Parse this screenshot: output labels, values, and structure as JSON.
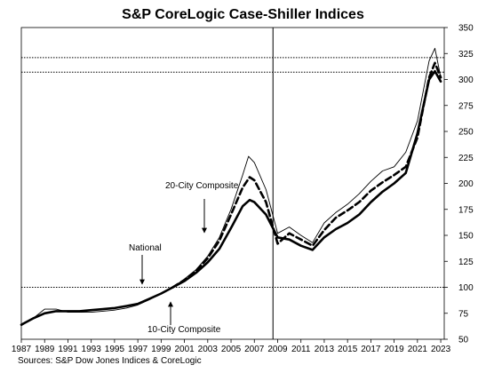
{
  "chart_data": {
    "type": "line",
    "title": "S&P CoreLogic Case-Shiller Indices",
    "source": "Sources:  S&P Dow Jones Indices & CoreLogic",
    "xlabel": "",
    "ylabel": "",
    "xlim": [
      1987,
      2023.3
    ],
    "ylim": [
      50,
      350
    ],
    "x_ticks": [
      "1987",
      "1989",
      "1991",
      "1993",
      "1995",
      "1997",
      "1999",
      "2001",
      "2003",
      "2005",
      "2007",
      "2009",
      "2011",
      "2013",
      "2015",
      "2017",
      "2019",
      "2021",
      "2023"
    ],
    "y_ticks": [
      50,
      75,
      100,
      125,
      150,
      175,
      200,
      225,
      250,
      275,
      300,
      325,
      350
    ],
    "y_axis_side": "right",
    "grid": false,
    "reference_lines": {
      "horizontal": [
        100,
        307,
        321
      ],
      "vertical": [
        2008.6
      ]
    },
    "annotations": [
      {
        "text": "20-City Composite",
        "target_series": "20-City Composite",
        "x": 2002.3,
        "y": 165
      },
      {
        "text": "National",
        "target_series": "National",
        "x": 1997.3,
        "y": 102
      },
      {
        "text": "10-City Composite",
        "target_series": "10-City Composite",
        "x": 1999.5,
        "y": 96
      }
    ],
    "series": [
      {
        "name": "National",
        "style": "solid-thick",
        "color": "#000000",
        "x": [
          1987,
          1988,
          1989,
          1990,
          1991,
          1992,
          1993,
          1994,
          1995,
          1996,
          1997,
          1998,
          1999,
          2000,
          2001,
          2002,
          2003,
          2004,
          2005,
          2006,
          2006.6,
          2007,
          2008,
          2009,
          2010,
          2011,
          2012,
          2013,
          2014,
          2015,
          2016,
          2017,
          2018,
          2019,
          2020,
          2021,
          2022,
          2022.5,
          2023
        ],
        "y": [
          64,
          70,
          75,
          77,
          77,
          77,
          78,
          79,
          80,
          82,
          84,
          89,
          94,
          100,
          106,
          114,
          124,
          137,
          157,
          178,
          184,
          182,
          170,
          148,
          146,
          140,
          136,
          148,
          156,
          162,
          170,
          182,
          192,
          200,
          210,
          248,
          300,
          308,
          298
        ]
      },
      {
        "name": "20-City Composite",
        "style": "solid-thin",
        "color": "#000000",
        "x": [
          2000,
          2001,
          2002,
          2003,
          2004,
          2005,
          2006,
          2006.5,
          2007,
          2008,
          2009,
          2010,
          2011,
          2012,
          2013,
          2014,
          2015,
          2016,
          2017,
          2018,
          2019,
          2020,
          2021,
          2022,
          2022.5,
          2023
        ],
        "y": [
          100,
          108,
          117,
          130,
          148,
          175,
          208,
          226,
          220,
          194,
          152,
          158,
          150,
          143,
          162,
          172,
          180,
          190,
          202,
          212,
          216,
          230,
          260,
          318,
          330,
          302
        ]
      },
      {
        "name": "10-City Composite",
        "style": "dashed-thick",
        "color": "#000000",
        "x": [
          2000,
          2001,
          2002,
          2003,
          2004,
          2005,
          2006,
          2006.6,
          2007,
          2008,
          2009,
          2010,
          2011,
          2012,
          2013,
          2014,
          2015,
          2016,
          2017,
          2018,
          2019,
          2020,
          2021,
          2022,
          2022.5,
          2023
        ],
        "y": [
          100,
          107,
          116,
          128,
          145,
          170,
          196,
          206,
          203,
          182,
          142,
          152,
          146,
          140,
          155,
          167,
          174,
          182,
          193,
          201,
          208,
          216,
          244,
          302,
          316,
          302
        ]
      },
      {
        "name": "",
        "style": "solid-thin",
        "color": "#000000",
        "x": [
          1987,
          1988,
          1989,
          1990,
          1991,
          1992,
          1993,
          1994,
          1995,
          1996,
          1997,
          1998,
          1999,
          2000
        ],
        "y": [
          63,
          70,
          79,
          79,
          76,
          76,
          76,
          77,
          78,
          80,
          83,
          88,
          94,
          100
        ]
      }
    ]
  }
}
